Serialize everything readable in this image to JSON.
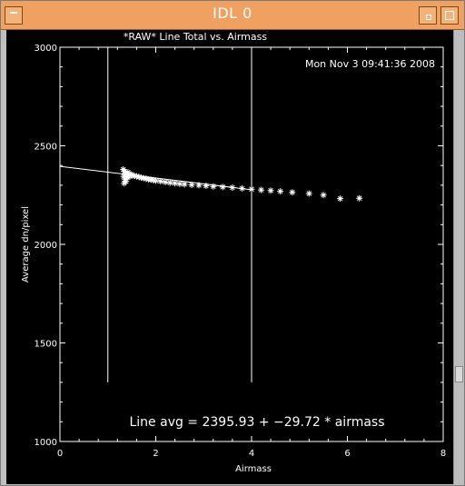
{
  "window": {
    "title": "IDL 0"
  },
  "chart_data": {
    "type": "scatter",
    "title": "*RAW* Line Total vs. Airmass",
    "timestamp": "Mon Nov  3 09:41:36 2008",
    "xlabel": "Airmass",
    "ylabel": "Average dn/pixel",
    "xlim": [
      0,
      8
    ],
    "ylim": [
      1000,
      3000
    ],
    "xticks": [
      "0",
      "2",
      "4",
      "6",
      "8"
    ],
    "yticks": [
      "1000",
      "1500",
      "2000",
      "2500",
      "3000"
    ],
    "fit_label": "Line avg = 2395.93 + −29.72 * airmass",
    "fit": {
      "intercept": 2395.93,
      "slope": -29.72,
      "x_range": [
        0,
        4.0
      ]
    },
    "markers": [
      1.0,
      4.0
    ],
    "points": [
      {
        "x": 1.32,
        "y": 2380
      },
      {
        "x": 1.33,
        "y": 2345
      },
      {
        "x": 1.34,
        "y": 2310
      },
      {
        "x": 1.35,
        "y": 2370
      },
      {
        "x": 1.36,
        "y": 2330
      },
      {
        "x": 1.37,
        "y": 2360
      },
      {
        "x": 1.38,
        "y": 2320
      },
      {
        "x": 1.39,
        "y": 2355
      },
      {
        "x": 1.4,
        "y": 2340
      },
      {
        "x": 1.42,
        "y": 2365
      },
      {
        "x": 1.44,
        "y": 2350
      },
      {
        "x": 1.46,
        "y": 2345
      },
      {
        "x": 1.48,
        "y": 2355
      },
      {
        "x": 1.5,
        "y": 2350
      },
      {
        "x": 1.55,
        "y": 2348
      },
      {
        "x": 1.6,
        "y": 2345
      },
      {
        "x": 1.65,
        "y": 2342
      },
      {
        "x": 1.7,
        "y": 2338
      },
      {
        "x": 1.75,
        "y": 2336
      },
      {
        "x": 1.8,
        "y": 2333
      },
      {
        "x": 1.85,
        "y": 2330
      },
      {
        "x": 1.9,
        "y": 2328
      },
      {
        "x": 1.95,
        "y": 2326
      },
      {
        "x": 2.0,
        "y": 2323
      },
      {
        "x": 2.1,
        "y": 2320
      },
      {
        "x": 2.2,
        "y": 2316
      },
      {
        "x": 2.3,
        "y": 2313
      },
      {
        "x": 2.4,
        "y": 2310
      },
      {
        "x": 2.5,
        "y": 2307
      },
      {
        "x": 2.6,
        "y": 2305
      },
      {
        "x": 2.75,
        "y": 2302
      },
      {
        "x": 2.9,
        "y": 2300
      },
      {
        "x": 3.05,
        "y": 2297
      },
      {
        "x": 3.2,
        "y": 2294
      },
      {
        "x": 3.4,
        "y": 2291
      },
      {
        "x": 3.6,
        "y": 2288
      },
      {
        "x": 3.8,
        "y": 2284
      },
      {
        "x": 4.0,
        "y": 2280
      },
      {
        "x": 4.2,
        "y": 2276
      },
      {
        "x": 4.4,
        "y": 2273
      },
      {
        "x": 4.6,
        "y": 2269
      },
      {
        "x": 4.85,
        "y": 2264
      },
      {
        "x": 5.2,
        "y": 2258
      },
      {
        "x": 5.5,
        "y": 2250
      },
      {
        "x": 5.85,
        "y": 2232
      },
      {
        "x": 6.25,
        "y": 2234
      }
    ]
  }
}
